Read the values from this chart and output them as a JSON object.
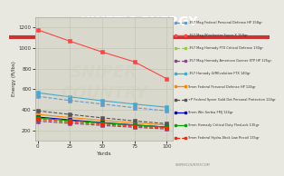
{
  "title": "KINETIC ENERGY",
  "xlabel": "Yards",
  "ylabel": "Energy (ft/lbs)",
  "x_values": [
    0,
    25,
    50,
    75,
    100
  ],
  "series": [
    {
      "label": ".357 Mag Federal Personal Defense HP 158gr",
      "color": "#6699cc",
      "style": "--",
      "marker": "s",
      "values": [
        530,
        490,
        455,
        420,
        390
      ]
    },
    {
      "label": ".357 Mag Winchester Super X 158gr",
      "color": "#ff4444",
      "style": "-",
      "marker": "s",
      "values": [
        1175,
        1065,
        960,
        865,
        700
      ]
    },
    {
      "label": ".357 Mag Hornady FTX Critical Defense 130gr",
      "color": "#99cc44",
      "style": "--",
      "marker": "s",
      "values": [
        300,
        275,
        255,
        235,
        220
      ]
    },
    {
      "label": ".357 Mag Hornady American Gunner XTP HP 125gr",
      "color": "#884488",
      "style": "--",
      "marker": "s",
      "values": [
        290,
        268,
        248,
        230,
        213
      ]
    },
    {
      "label": ".357 Hornady LVREvolution FTX 140gr",
      "color": "#44aacc",
      "style": "-",
      "marker": "s",
      "values": [
        565,
        525,
        488,
        455,
        425
      ]
    },
    {
      "label": "9mm Federal Personal Defense HP 124gr",
      "color": "#ff8800",
      "style": "-",
      "marker": "s",
      "values": [
        355,
        325,
        298,
        273,
        252
      ]
    },
    {
      "label": "+P Federal Speer Gold Dot Personal Protection 124gr",
      "color": "#555555",
      "style": "--",
      "marker": "s",
      "values": [
        390,
        355,
        322,
        292,
        265
      ]
    },
    {
      "label": "9mm Win Serbia FMJ 124gr",
      "color": "#0000cc",
      "style": "-",
      "marker": "s",
      "values": [
        330,
        302,
        276,
        253,
        232
      ]
    },
    {
      "label": "9mm Hornady Critical Duty FlexLock 135gr",
      "color": "#00aa00",
      "style": "-",
      "marker": "s",
      "values": [
        320,
        295,
        272,
        251,
        232
      ]
    },
    {
      "label": "9mm Federal Hydra-Shok Low Recoil 135gr",
      "color": "#ff2200",
      "style": "--",
      "marker": "s",
      "values": [
        310,
        285,
        262,
        242,
        224
      ]
    }
  ],
  "ylim": [
    100,
    1300
  ],
  "yticks": [
    200,
    400,
    600,
    800,
    1000,
    1200
  ],
  "background_color": "#e8e8e0",
  "plot_bg": "#d8d8cc",
  "title_bg": "#555555",
  "accent_color": "#cc3333",
  "title_color": "#ffffff",
  "grid_color": "#bbbbaa",
  "watermark_line1": "SNIPER",
  "watermark_line2": "COUNTRY",
  "website": "SNIPERCOUNTRY.COM"
}
